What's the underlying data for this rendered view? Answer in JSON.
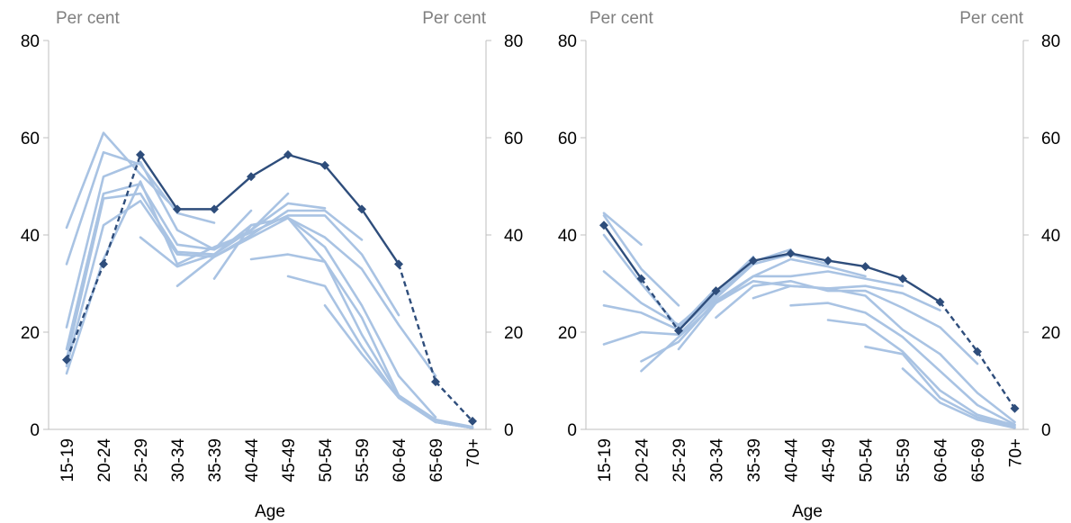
{
  "chart_data": [
    {
      "type": "line",
      "xlabel": "Age",
      "unit_left": "Per cent",
      "unit_right": "Per cent",
      "ylim": [
        0,
        80
      ],
      "yticks": [
        0,
        20,
        40,
        60,
        80
      ],
      "grid": false,
      "categories": [
        "15-19",
        "20-24",
        "25-29",
        "30-34",
        "35-39",
        "40-44",
        "45-49",
        "50-54",
        "55-59",
        "60-64",
        "65-69",
        "70+"
      ],
      "colors": {
        "main": "#2e4d7b",
        "cohort": "#a9c3e3"
      },
      "main_series": {
        "values": [
          14.3,
          34,
          56.5,
          45.3,
          45.3,
          52,
          56.5,
          54.3,
          45.3,
          34,
          9.8,
          1.7
        ],
        "dashed_segments": [
          [
            0,
            1
          ],
          [
            1,
            2
          ],
          [
            9,
            10
          ],
          [
            10,
            11
          ]
        ]
      },
      "cohort_series": [
        {
          "values": [
            41.5,
            61,
            52.5,
            45,
            null,
            null,
            null,
            null,
            null,
            null,
            null,
            null
          ]
        },
        {
          "values": [
            34,
            57,
            54.5,
            44.5,
            42.5,
            null,
            null,
            null,
            null,
            null,
            null,
            null
          ]
        },
        {
          "values": [
            21,
            52,
            55,
            41,
            37,
            45,
            null,
            null,
            null,
            null,
            null,
            null
          ]
        },
        {
          "values": [
            16.5,
            48.5,
            50.5,
            38,
            37,
            41,
            48.5,
            null,
            null,
            null,
            null,
            null
          ]
        },
        {
          "values": [
            14.5,
            47.5,
            48.5,
            36.5,
            36,
            41,
            46.5,
            45.5,
            null,
            null,
            null,
            null
          ]
        },
        {
          "values": [
            13,
            42,
            47,
            36,
            35.5,
            40,
            45,
            45,
            39,
            null,
            null,
            null
          ]
        },
        {
          "values": [
            11.5,
            35,
            51,
            34,
            37.5,
            40.5,
            44,
            44,
            36,
            23.5,
            null,
            null
          ]
        },
        {
          "values": [
            null,
            null,
            39.5,
            33.5,
            36,
            42,
            43.5,
            39.5,
            33,
            21.5,
            11,
            null
          ]
        },
        {
          "values": [
            null,
            null,
            null,
            29.5,
            35.5,
            39.5,
            43.5,
            37.5,
            25.5,
            11,
            2.5,
            null
          ]
        },
        {
          "values": [
            null,
            null,
            null,
            null,
            31,
            42,
            43.5,
            34.5,
            19.5,
            7,
            2,
            0.5
          ]
        },
        {
          "values": [
            null,
            null,
            null,
            null,
            null,
            35,
            36,
            34.5,
            23,
            7,
            1.5,
            0.3
          ]
        },
        {
          "values": [
            null,
            null,
            null,
            null,
            null,
            null,
            31.5,
            29.5,
            17,
            6.5,
            1.5,
            0.3
          ]
        },
        {
          "values": [
            null,
            null,
            null,
            null,
            null,
            null,
            null,
            25.5,
            15.5,
            6.5,
            1.5,
            0.3
          ]
        }
      ]
    },
    {
      "type": "line",
      "xlabel": "Age",
      "unit_left": "Per cent",
      "unit_right": "Per cent",
      "ylim": [
        0,
        80
      ],
      "yticks": [
        0,
        20,
        40,
        60,
        80
      ],
      "grid": false,
      "categories": [
        "15-19",
        "20-24",
        "25-29",
        "30-34",
        "35-39",
        "40-44",
        "45-49",
        "50-54",
        "55-59",
        "60-64",
        "65-69",
        "70+"
      ],
      "colors": {
        "main": "#2e4d7b",
        "cohort": "#a9c3e3"
      },
      "main_series": {
        "values": [
          42,
          31,
          20.3,
          28.5,
          34.7,
          36.2,
          34.7,
          33.5,
          31,
          26.2,
          16,
          4.3
        ],
        "dashed_segments": [
          [
            1,
            2
          ],
          [
            9,
            10
          ],
          [
            10,
            11
          ]
        ]
      },
      "cohort_series": [
        {
          "values": [
            44.5,
            38,
            null,
            null,
            null,
            null,
            null,
            null,
            null,
            null,
            null,
            null
          ]
        },
        {
          "values": [
            44,
            33,
            25.5,
            null,
            null,
            null,
            null,
            null,
            null,
            null,
            null,
            null
          ]
        },
        {
          "values": [
            40,
            30,
            21,
            29,
            null,
            null,
            null,
            null,
            null,
            null,
            null,
            null
          ]
        },
        {
          "values": [
            32.5,
            26,
            21.5,
            28,
            35.5,
            null,
            null,
            null,
            null,
            null,
            null,
            null
          ]
        },
        {
          "values": [
            25.5,
            24,
            20.5,
            27.5,
            34.5,
            37,
            null,
            null,
            null,
            null,
            null,
            null
          ]
        },
        {
          "values": [
            17.5,
            20,
            19.5,
            27,
            34,
            36,
            34,
            null,
            null,
            null,
            null,
            null
          ]
        },
        {
          "values": [
            null,
            14,
            18,
            26.5,
            31.5,
            35,
            33.5,
            31.5,
            null,
            null,
            null,
            null
          ]
        },
        {
          "values": [
            null,
            12,
            19,
            26,
            31.5,
            31.5,
            32.5,
            31,
            29.5,
            null,
            null,
            null
          ]
        },
        {
          "values": [
            null,
            null,
            16.5,
            26,
            30.5,
            29.5,
            29,
            29.5,
            28,
            24.5,
            null,
            null
          ]
        },
        {
          "values": [
            null,
            null,
            null,
            23,
            29.5,
            30.5,
            28.5,
            28.5,
            25,
            21,
            13.5,
            null
          ]
        },
        {
          "values": [
            null,
            null,
            null,
            null,
            27,
            29.5,
            29,
            27.5,
            20.5,
            15.5,
            7.5,
            1.5
          ]
        },
        {
          "values": [
            null,
            null,
            null,
            null,
            null,
            25.5,
            26,
            24,
            19,
            12,
            5,
            1
          ]
        },
        {
          "values": [
            null,
            null,
            null,
            null,
            null,
            null,
            22.5,
            21.5,
            16,
            8,
            3,
            0.8
          ]
        },
        {
          "values": [
            null,
            null,
            null,
            null,
            null,
            null,
            null,
            17,
            15.5,
            6.5,
            2.5,
            0.5
          ]
        },
        {
          "values": [
            null,
            null,
            null,
            null,
            null,
            null,
            null,
            null,
            12.5,
            5.5,
            2,
            0.3
          ]
        }
      ]
    }
  ]
}
